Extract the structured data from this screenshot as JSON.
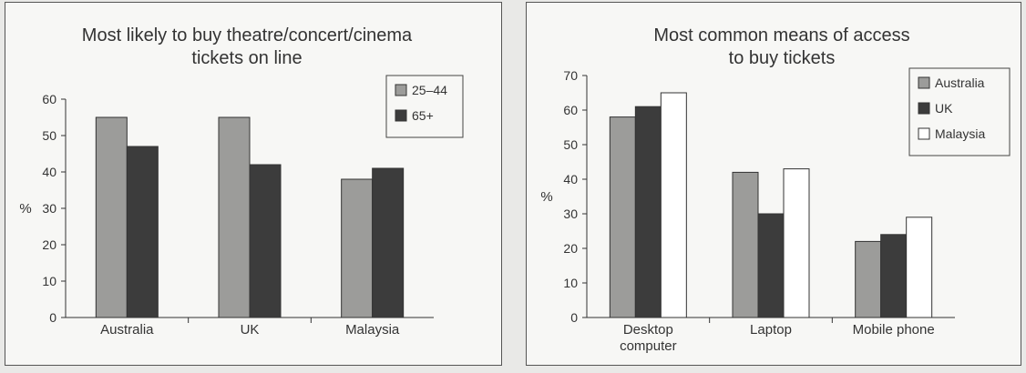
{
  "chart_data": [
    {
      "type": "bar",
      "title_lines": [
        "Most likely to buy theatre/concert/cinema",
        "tickets on line"
      ],
      "ylabel": "%",
      "ylim": [
        0,
        60
      ],
      "yticks": [
        0,
        10,
        20,
        30,
        40,
        50,
        60
      ],
      "categories": [
        [
          "Australia"
        ],
        [
          "UK"
        ],
        [
          "Malaysia"
        ]
      ],
      "series": [
        {
          "name": "25–44",
          "color": "#9c9c9a",
          "values": [
            55,
            55,
            38
          ]
        },
        {
          "name": "65+",
          "color": "#3c3c3c",
          "values": [
            47,
            42,
            41
          ]
        }
      ],
      "legend": "top-right",
      "grid": false
    },
    {
      "type": "bar",
      "title_lines": [
        "Most common means of access",
        "to buy tickets"
      ],
      "ylabel": "%",
      "ylim": [
        0,
        70
      ],
      "yticks": [
        0,
        10,
        20,
        30,
        40,
        50,
        60,
        70
      ],
      "categories": [
        [
          "Desktop",
          "computer"
        ],
        [
          "Laptop"
        ],
        [
          "Mobile phone"
        ]
      ],
      "series": [
        {
          "name": "Australia",
          "color": "#9c9c9a",
          "values": [
            58,
            42,
            22
          ]
        },
        {
          "name": "UK",
          "color": "#3c3c3c",
          "values": [
            61,
            30,
            24
          ]
        },
        {
          "name": "Malaysia",
          "color": "#ffffff",
          "values": [
            65,
            43,
            29
          ]
        }
      ],
      "legend": "top-right",
      "grid": false
    }
  ]
}
